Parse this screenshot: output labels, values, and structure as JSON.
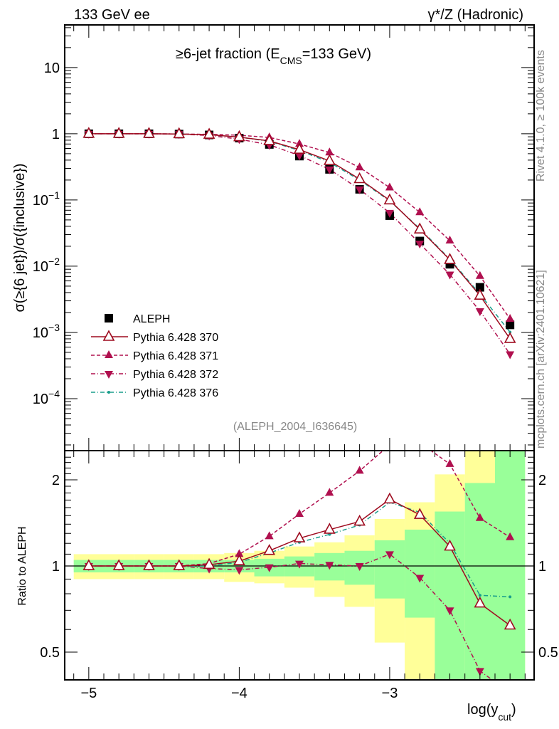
{
  "header": {
    "left": "133 GeV ee",
    "right": "γ*/Z (Hadronic)"
  },
  "side_text": {
    "rivet": "Rivet 4.1.0, ≥ 100k events",
    "mcplots": "mcplots.cern.ch [arXiv:2401.10621]"
  },
  "chart_data": {
    "type": "line",
    "title": "≥6-jet fraction (E_CMS=133 GeV)",
    "title_main": "≥6-jet fraction (E",
    "title_sub": "CMS",
    "title_end": "=133 GeV)",
    "analysis": "(ALEPH_2004_I636645)",
    "ylabel": "σ(≥{6 jet})/σ({inclusive})",
    "ratio_ylabel": "Ratio to ALEPH",
    "xlabel_main": "log(y",
    "xlabel_sub": "cut",
    "xlabel_end": ")",
    "xlim": [
      -5.16,
      -2.04
    ],
    "ylim": [
      1.64e-05,
      44
    ],
    "yscale": "log",
    "ratio_ylim": [
      0.4,
      2.53
    ],
    "x_ticks": [
      {
        "v": -5,
        "label": "−5"
      },
      {
        "v": -4,
        "label": "−4"
      },
      {
        "v": -3,
        "label": "−3"
      }
    ],
    "y_ticks": [
      {
        "v": 10,
        "label": "10"
      },
      {
        "v": 1,
        "label": "1"
      },
      {
        "v": 0.1,
        "label": "10",
        "exp": "−1"
      },
      {
        "v": 0.01,
        "label": "10",
        "exp": "−2"
      },
      {
        "v": 0.001,
        "label": "10",
        "exp": "−3"
      },
      {
        "v": 0.0001,
        "label": "10",
        "exp": "−4"
      }
    ],
    "ratio_ticks": [
      {
        "v": 2,
        "label": "2"
      },
      {
        "v": 1,
        "label": "1"
      },
      {
        "v": 0.5,
        "label": "0.5"
      }
    ],
    "x": [
      -5.0,
      -4.8,
      -4.6,
      -4.4,
      -4.2,
      -4.0,
      -3.8,
      -3.6,
      -3.4,
      -3.2,
      -3.0,
      -2.8,
      -2.6,
      -2.4,
      -2.2
    ],
    "data": {
      "name": "ALEPH",
      "values": [
        1.0,
        1.0,
        1.0,
        0.99,
        0.96,
        0.86,
        0.69,
        0.46,
        0.29,
        0.145,
        0.058,
        0.024,
        0.0107,
        0.0048,
        0.0013
      ]
    },
    "series": [
      {
        "name": "Pythia 6.428 370",
        "color": "#9e0a1e",
        "marker": "open-triangle-up",
        "dash": "",
        "values": [
          1,
          1,
          1,
          0.99,
          0.97,
          0.89,
          0.78,
          0.575,
          0.39,
          0.207,
          0.099,
          0.036,
          0.0125,
          0.0036,
          0.0008
        ],
        "ratio": [
          1,
          1,
          1,
          1,
          1.01,
          1.04,
          1.13,
          1.25,
          1.34,
          1.43,
          1.71,
          1.51,
          1.17,
          0.74,
          0.62
        ]
      },
      {
        "name": "Pythia 6.428 371",
        "color": "#b0104f",
        "marker": "triangle-up",
        "dash": "5,3",
        "values": [
          1,
          1,
          1,
          0.99,
          0.98,
          0.95,
          0.88,
          0.7,
          0.52,
          0.31,
          0.154,
          0.065,
          0.0243,
          0.0071,
          0.0016
        ],
        "ratio": [
          1,
          1,
          1,
          1,
          1.02,
          1.1,
          1.27,
          1.52,
          1.8,
          2.15,
          2.65,
          2.7,
          2.27,
          1.47,
          1.26
        ]
      },
      {
        "name": "Pythia 6.428 372",
        "color": "#b0104f",
        "marker": "triangle-down",
        "dash": "6,3,1,3",
        "values": [
          1,
          1,
          1,
          0.99,
          0.94,
          0.83,
          0.68,
          0.47,
          0.29,
          0.145,
          0.064,
          0.022,
          0.0075,
          0.0021,
          0.00047
        ],
        "ratio": [
          1,
          1,
          1,
          1,
          0.98,
          0.97,
          0.99,
          1.02,
          1.01,
          1.0,
          1.1,
          0.91,
          0.7,
          0.43,
          0.36
        ]
      },
      {
        "name": "Pythia 6.428 376",
        "color": "#1a9e8c",
        "marker": "dot",
        "dash": "6,3,1,3",
        "values": [
          1,
          1,
          1,
          0.99,
          0.96,
          0.89,
          0.77,
          0.56,
          0.37,
          0.2,
          0.097,
          0.037,
          0.0128,
          0.0038,
          0.00101
        ],
        "ratio": [
          1,
          1,
          1,
          1,
          1,
          1.03,
          1.11,
          1.21,
          1.29,
          1.39,
          1.67,
          1.54,
          1.2,
          0.79,
          0.78
        ]
      }
    ],
    "band_outer": [
      [
        0.9,
        1.1
      ],
      [
        0.9,
        1.1
      ],
      [
        0.9,
        1.1
      ],
      [
        0.9,
        1.1
      ],
      [
        0.9,
        1.1
      ],
      [
        0.88,
        1.11
      ],
      [
        0.87,
        1.13
      ],
      [
        0.84,
        1.17
      ],
      [
        0.78,
        1.21
      ],
      [
        0.72,
        1.28
      ],
      [
        0.54,
        1.46
      ],
      [
        0.3,
        1.67
      ],
      [
        0.45,
        2.09
      ],
      [
        0.3,
        3
      ],
      [
        0.3,
        3
      ]
    ],
    "band_inner": [
      [
        0.95,
        1.05
      ],
      [
        0.95,
        1.05
      ],
      [
        0.95,
        1.05
      ],
      [
        0.95,
        1.05
      ],
      [
        0.95,
        1.05
      ],
      [
        0.95,
        1.05
      ],
      [
        0.92,
        1.06
      ],
      [
        0.92,
        1.08
      ],
      [
        0.89,
        1.11
      ],
      [
        0.86,
        1.13
      ],
      [
        0.77,
        1.23
      ],
      [
        0.66,
        1.34
      ],
      [
        0.3,
        1.55
      ],
      [
        0.3,
        1.95
      ],
      [
        0.3,
        3
      ]
    ],
    "band_colors": {
      "outer": "#ffff99",
      "inner": "#99ff99"
    },
    "bin_halfwidth": 0.1,
    "legend_position": "lower-left"
  }
}
